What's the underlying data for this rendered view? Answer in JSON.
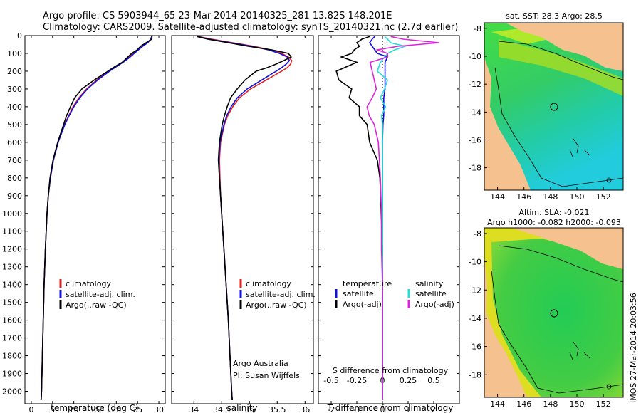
{
  "header": {
    "title_line1": "Argo profile: CS 5903944_65 23-Mar-2014 20140325_281 13.82S 148.201E",
    "title_line2": "Climatology: CARS2009. Satellite-adjusted climatology: synTS_20140321.nc (2.7d earlier)"
  },
  "colors": {
    "red": "#e02020",
    "blue": "#1010dd",
    "black": "#000000",
    "cyan": "#22dddd",
    "magenta": "#dd22dd"
  },
  "depth_axis": {
    "min": 0,
    "max": 2070,
    "ticks": [
      0,
      100,
      200,
      300,
      400,
      500,
      600,
      700,
      800,
      900,
      1000,
      1100,
      1200,
      1300,
      1400,
      1500,
      1600,
      1700,
      1800,
      1900,
      2000
    ]
  },
  "chart_data": [
    {
      "type": "line",
      "name": "temperature-profile",
      "xlabel": "temperature (deg C)",
      "ylabel": "depth",
      "xlim": [
        -1.5,
        31.5
      ],
      "xticks": [
        0,
        5,
        10,
        15,
        20,
        25,
        30
      ],
      "legend": [
        "climatology",
        "satellite-adj. clim.",
        "Argo(..raw -QC)"
      ],
      "depth": [
        5,
        20,
        40,
        60,
        80,
        100,
        125,
        150,
        175,
        200,
        250,
        300,
        350,
        400,
        450,
        500,
        600,
        700,
        800,
        900,
        1000,
        1200,
        1400,
        1600,
        1800,
        2000,
        2050
      ],
      "series": [
        {
          "name": "climatology",
          "color": "red",
          "values": [
            28.4,
            28.2,
            27.2,
            26.0,
            25.0,
            24.0,
            22.8,
            21.4,
            19.8,
            18.2,
            15.4,
            13.0,
            11.2,
            9.8,
            8.8,
            7.8,
            6.3,
            5.2,
            4.5,
            4.0,
            3.7,
            3.3,
            3.0,
            2.8,
            2.6,
            2.4,
            2.3
          ]
        },
        {
          "name": "satellite-adj. clim.",
          "color": "blue",
          "values": [
            28.3,
            28.1,
            27.4,
            26.2,
            25.2,
            24.2,
            23.0,
            21.6,
            20.0,
            18.4,
            15.6,
            13.2,
            11.4,
            10.0,
            8.9,
            7.9,
            6.3,
            5.2,
            4.5,
            4.0,
            3.7,
            3.3,
            3.0,
            2.8,
            2.6,
            2.4,
            2.3
          ]
        },
        {
          "name": "Argo(..raw -QC)",
          "color": "black",
          "values": [
            28.4,
            28.3,
            27.0,
            25.7,
            24.9,
            23.6,
            22.5,
            21.4,
            19.6,
            18.0,
            14.8,
            11.9,
            10.2,
            9.2,
            8.3,
            7.6,
            6.2,
            5.1,
            4.4,
            4.0,
            3.7,
            3.3,
            3.0,
            2.8,
            2.6,
            2.4,
            2.3
          ]
        }
      ]
    },
    {
      "type": "line",
      "name": "salinity-profile",
      "xlabel": "salinity",
      "ylabel": "depth",
      "xlim": [
        33.6,
        36.15
      ],
      "xticks": [
        34,
        34.5,
        35,
        35.5,
        36
      ],
      "legend": [
        "climatology",
        "satellite-adj. clim.",
        "Argo(..raw -QC)"
      ],
      "annotation_line1": "Argo Australia",
      "annotation_line2": "PI: Susan Wijffels",
      "depth": [
        5,
        20,
        40,
        60,
        80,
        100,
        120,
        140,
        160,
        180,
        200,
        250,
        300,
        350,
        400,
        450,
        500,
        600,
        700,
        800,
        900,
        1000,
        1200,
        1400,
        1600,
        1800,
        2000,
        2050
      ],
      "series": [
        {
          "name": "climatology",
          "color": "red",
          "values": [
            34.08,
            34.32,
            34.7,
            35.08,
            35.38,
            35.58,
            35.7,
            35.76,
            35.74,
            35.68,
            35.58,
            35.3,
            35.02,
            34.82,
            34.7,
            34.61,
            34.55,
            34.48,
            34.46,
            34.47,
            34.48,
            34.5,
            34.54,
            34.58,
            34.62,
            34.65,
            34.68,
            34.69
          ]
        },
        {
          "name": "satellite-adj. clim.",
          "color": "blue",
          "values": [
            34.06,
            34.28,
            34.66,
            35.04,
            35.34,
            35.54,
            35.68,
            35.72,
            35.66,
            35.58,
            35.48,
            35.22,
            34.96,
            34.78,
            34.67,
            34.59,
            34.54,
            34.47,
            34.45,
            34.46,
            34.48,
            34.5,
            34.54,
            34.58,
            34.62,
            34.65,
            34.68,
            34.69
          ]
        },
        {
          "name": "Argo(..raw -QC)",
          "color": "black",
          "values": [
            34.05,
            34.25,
            34.62,
            34.98,
            35.4,
            35.7,
            35.75,
            35.62,
            35.48,
            35.32,
            35.12,
            34.92,
            34.78,
            34.66,
            34.6,
            34.55,
            34.51,
            34.46,
            34.44,
            34.46,
            34.48,
            34.5,
            34.54,
            34.58,
            34.62,
            34.65,
            34.68,
            34.69
          ]
        }
      ]
    },
    {
      "type": "line",
      "name": "difference-profile",
      "xlabel": "T difference from climatology",
      "xlabel_top": "S difference from climatology",
      "xlim_T": [
        -2.5,
        3.0
      ],
      "xticks_T": [
        -2,
        -1,
        0,
        1,
        2
      ],
      "xlim_S": [
        -0.625,
        0.75
      ],
      "xticks_S": [
        "-0.5",
        "-0.25",
        "0",
        "0.25",
        "0.5"
      ],
      "legend_left_title": "temperature",
      "legend_right_title": "salinity",
      "legend": [
        "satellite",
        "Argo(-adj)",
        "satellite",
        "Argo(-adj)"
      ],
      "depth": [
        5,
        20,
        40,
        60,
        80,
        100,
        120,
        150,
        200,
        250,
        300,
        350,
        400,
        450,
        500,
        600,
        700,
        800,
        1000,
        1200,
        1400,
        1600,
        1800,
        2000,
        2050
      ],
      "series": [
        {
          "name": "temperature satellite",
          "color": "blue",
          "values": [
            -0.3,
            -0.4,
            -0.5,
            -0.4,
            -0.3,
            -0.2,
            0.2,
            0.1,
            0.1,
            0.1,
            0.1,
            0.05,
            0.05,
            0.05,
            0.02,
            0.0,
            0.0,
            0.0,
            0.0,
            0.0,
            0.0,
            0.0,
            0.0,
            0.0,
            0.0
          ]
        },
        {
          "name": "temperature Argo(-adj)",
          "color": "black",
          "values": [
            -0.5,
            -0.8,
            -1.0,
            -0.9,
            -1.1,
            -1.2,
            -1.6,
            -1.0,
            -1.8,
            -1.7,
            -1.2,
            -1.3,
            -0.9,
            -0.9,
            -0.6,
            -0.5,
            -0.2,
            -0.1,
            -0.05,
            0.0,
            0.0,
            0.0,
            0.0,
            0.0,
            0.0
          ]
        },
        {
          "name": "salinity satellite",
          "color": "cyan",
          "values": [
            0.02,
            0.05,
            0.08,
            0.22,
            0.12,
            0.05,
            0.02,
            -0.02,
            -0.05,
            0.05,
            0.02,
            -0.02,
            0.03,
            -0.01,
            0.0,
            0.0,
            0.0,
            0.0,
            0.0,
            0.0,
            0.0,
            0.0,
            0.0,
            0.0,
            0.0
          ]
        },
        {
          "name": "salinity Argo(-adj)",
          "color": "magenta",
          "values": [
            0.08,
            0.2,
            0.55,
            0.15,
            -0.05,
            0.05,
            0.05,
            -0.12,
            -0.1,
            -0.08,
            -0.06,
            -0.1,
            -0.15,
            -0.13,
            -0.08,
            -0.04,
            -0.03,
            -0.02,
            -0.01,
            -0.01,
            0.0,
            0.0,
            0.0,
            0.0,
            0.0
          ]
        }
      ]
    },
    {
      "type": "heatmap",
      "name": "sst-map",
      "title": "sat. SST: 28.3 Argo: 28.5",
      "xlim": [
        143,
        153.5
      ],
      "ylim": [
        -19.6,
        -7.6
      ],
      "xticks": [
        144,
        146,
        148,
        150,
        152
      ],
      "yticks": [
        -8,
        -10,
        -12,
        -14,
        -16,
        -18
      ],
      "marker": {
        "lon": 148.2,
        "lat": -13.82
      }
    },
    {
      "type": "heatmap",
      "name": "sla-map",
      "title_line1": "Altim. SLA: -0.021",
      "title_line2": "Argo h1000: -0.082 h2000: -0.093",
      "xlim": [
        143,
        153.5
      ],
      "ylim": [
        -19.6,
        -7.6
      ],
      "xticks": [
        144,
        146,
        148,
        150,
        152
      ],
      "yticks": [
        -8,
        -10,
        -12,
        -14,
        -16,
        -18
      ],
      "marker": {
        "lon": 148.2,
        "lat": -13.82
      }
    }
  ],
  "footer": {
    "stamp": "IMOS 27-Mar-2014 20:03:56"
  }
}
